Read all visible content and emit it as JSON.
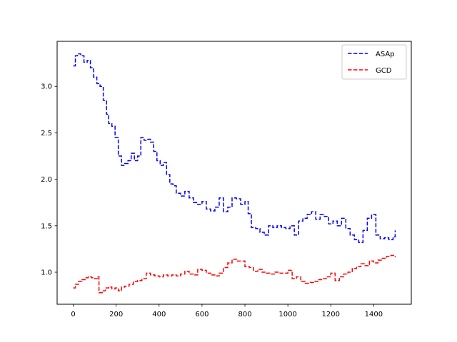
{
  "chart_data": {
    "type": "line",
    "title": "",
    "xlabel": "",
    "ylabel": "",
    "xlim": [
      -75,
      1575
    ],
    "ylim": [
      0.655,
      3.485
    ],
    "grid": false,
    "legend_placement": "top-right",
    "xticks": [
      {
        "value": 0,
        "label": "0"
      },
      {
        "value": 200,
        "label": "200"
      },
      {
        "value": 400,
        "label": "400"
      },
      {
        "value": 600,
        "label": "600"
      },
      {
        "value": 800,
        "label": "800"
      },
      {
        "value": 1000,
        "label": "1000"
      },
      {
        "value": 1200,
        "label": "1200"
      },
      {
        "value": 1400,
        "label": "1400"
      }
    ],
    "yticks": [
      {
        "value": 1.0,
        "label": "1.0"
      },
      {
        "value": 1.5,
        "label": "1.5"
      },
      {
        "value": 2.0,
        "label": "2.0"
      },
      {
        "value": 2.5,
        "label": "2.5"
      },
      {
        "value": 3.0,
        "label": "3.0"
      }
    ],
    "series": [
      {
        "name": "ASAp",
        "color": "#0000ff",
        "style": "dashed",
        "x": [
          0,
          10,
          20,
          35,
          50,
          65,
          80,
          95,
          110,
          125,
          140,
          155,
          165,
          180,
          195,
          210,
          225,
          240,
          255,
          270,
          285,
          300,
          315,
          330,
          345,
          360,
          375,
          390,
          405,
          420,
          435,
          450,
          465,
          480,
          500,
          520,
          540,
          560,
          580,
          600,
          620,
          640,
          660,
          680,
          700,
          720,
          740,
          760,
          780,
          800,
          815,
          830,
          850,
          870,
          890,
          910,
          930,
          950,
          970,
          990,
          1010,
          1030,
          1050,
          1070,
          1090,
          1110,
          1130,
          1150,
          1170,
          1190,
          1210,
          1230,
          1250,
          1270,
          1290,
          1310,
          1330,
          1350,
          1370,
          1390,
          1410,
          1430,
          1450,
          1470,
          1490,
          1500
        ],
        "y": [
          3.22,
          3.33,
          3.35,
          3.33,
          3.26,
          3.28,
          3.2,
          3.1,
          3.03,
          3.0,
          2.85,
          2.7,
          2.6,
          2.57,
          2.45,
          2.25,
          2.15,
          2.17,
          2.2,
          2.28,
          2.2,
          2.25,
          2.45,
          2.42,
          2.43,
          2.4,
          2.3,
          2.2,
          2.15,
          2.18,
          2.05,
          1.95,
          1.93,
          1.85,
          1.82,
          1.87,
          1.8,
          1.75,
          1.73,
          1.76,
          1.68,
          1.66,
          1.7,
          1.8,
          1.65,
          1.7,
          1.8,
          1.79,
          1.73,
          1.76,
          1.63,
          1.48,
          1.47,
          1.43,
          1.4,
          1.5,
          1.48,
          1.5,
          1.48,
          1.47,
          1.5,
          1.4,
          1.55,
          1.58,
          1.62,
          1.65,
          1.57,
          1.62,
          1.6,
          1.52,
          1.55,
          1.5,
          1.58,
          1.47,
          1.4,
          1.35,
          1.32,
          1.45,
          1.58,
          1.62,
          1.4,
          1.36,
          1.37,
          1.35,
          1.38,
          1.45
        ]
      },
      {
        "name": "GCD",
        "color": "#ff0000",
        "style": "dashed",
        "x": [
          0,
          10,
          25,
          40,
          55,
          70,
          85,
          100,
          115,
          120,
          135,
          150,
          165,
          180,
          195,
          210,
          225,
          240,
          260,
          280,
          300,
          320,
          340,
          360,
          380,
          400,
          420,
          440,
          460,
          480,
          500,
          520,
          540,
          560,
          580,
          600,
          620,
          640,
          660,
          680,
          700,
          720,
          740,
          760,
          780,
          800,
          820,
          840,
          860,
          880,
          900,
          920,
          940,
          960,
          980,
          1000,
          1020,
          1040,
          1060,
          1080,
          1100,
          1120,
          1140,
          1160,
          1180,
          1200,
          1220,
          1240,
          1260,
          1280,
          1300,
          1320,
          1340,
          1360,
          1380,
          1400,
          1420,
          1440,
          1460,
          1480,
          1500
        ],
        "y": [
          0.83,
          0.87,
          0.9,
          0.92,
          0.94,
          0.95,
          0.94,
          0.93,
          0.95,
          0.78,
          0.8,
          0.83,
          0.84,
          0.82,
          0.83,
          0.8,
          0.84,
          0.85,
          0.87,
          0.9,
          0.91,
          0.93,
          0.99,
          0.97,
          0.96,
          0.95,
          0.97,
          0.96,
          0.97,
          0.96,
          0.98,
          1.01,
          0.98,
          0.97,
          1.03,
          1.02,
          0.99,
          0.97,
          0.96,
          0.99,
          1.05,
          1.1,
          1.14,
          1.12,
          1.12,
          1.06,
          1.05,
          1.01,
          1.03,
          1.0,
          0.99,
          0.98,
          1.0,
          0.99,
          0.99,
          1.02,
          0.93,
          0.95,
          0.9,
          0.88,
          0.89,
          0.9,
          0.92,
          0.93,
          0.95,
          0.99,
          0.91,
          0.95,
          0.98,
          1.0,
          1.04,
          1.06,
          1.09,
          1.07,
          1.12,
          1.1,
          1.13,
          1.15,
          1.17,
          1.18,
          1.16
        ]
      }
    ]
  }
}
